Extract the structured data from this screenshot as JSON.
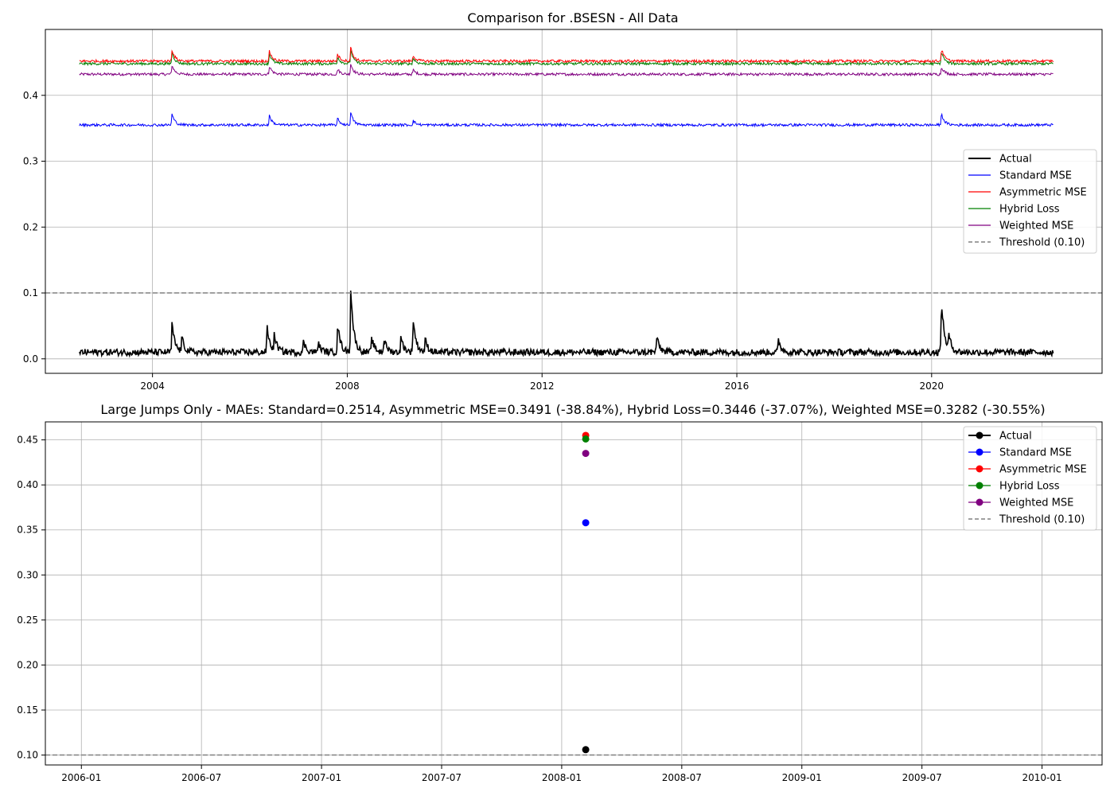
{
  "chart_data": [
    {
      "type": "line",
      "title": "Comparison for .BSESN - All Data",
      "xlabel": "",
      "ylabel": "",
      "x_range": [
        "2002-07-01",
        "2022-06-30"
      ],
      "xlim": [
        2001.8,
        2023.5
      ],
      "ylim": [
        -0.022,
        0.5
      ],
      "x_ticks": [
        "2004",
        "2008",
        "2012",
        "2016",
        "2020"
      ],
      "y_ticks": [
        "0.0",
        "0.1",
        "0.2",
        "0.3",
        "0.4"
      ],
      "grid": true,
      "legend_position": "right",
      "threshold": {
        "name": "Threshold (0.10)",
        "value": 0.1,
        "color": "#808080",
        "style": "dashed"
      },
      "series": [
        {
          "name": "Actual",
          "color": "#000000",
          "baseline": 0.01,
          "noise": 0.005,
          "spikes": [
            {
              "x": 2004.4,
              "y": 0.054
            },
            {
              "x": 2004.6,
              "y": 0.032
            },
            {
              "x": 2006.35,
              "y": 0.051
            },
            {
              "x": 2006.5,
              "y": 0.035
            },
            {
              "x": 2007.1,
              "y": 0.027
            },
            {
              "x": 2007.4,
              "y": 0.025
            },
            {
              "x": 2007.8,
              "y": 0.055
            },
            {
              "x": 2008.07,
              "y": 0.107
            },
            {
              "x": 2008.5,
              "y": 0.032
            },
            {
              "x": 2008.75,
              "y": 0.032
            },
            {
              "x": 2009.1,
              "y": 0.034
            },
            {
              "x": 2009.35,
              "y": 0.063
            },
            {
              "x": 2009.6,
              "y": 0.03
            },
            {
              "x": 2014.35,
              "y": 0.035
            },
            {
              "x": 2016.85,
              "y": 0.03
            },
            {
              "x": 2020.2,
              "y": 0.093
            },
            {
              "x": 2020.35,
              "y": 0.033
            }
          ]
        },
        {
          "name": "Standard MSE",
          "color": "#0000ff",
          "baseline": 0.355,
          "noise": 0.002,
          "spikes": [
            {
              "x": 2004.4,
              "y": 0.372
            },
            {
              "x": 2006.4,
              "y": 0.37
            },
            {
              "x": 2007.8,
              "y": 0.365
            },
            {
              "x": 2008.07,
              "y": 0.374
            },
            {
              "x": 2009.35,
              "y": 0.362
            },
            {
              "x": 2020.2,
              "y": 0.373
            }
          ]
        },
        {
          "name": "Asymmetric MSE",
          "color": "#ff0000",
          "baseline": 0.452,
          "noise": 0.002,
          "spikes": [
            {
              "x": 2004.4,
              "y": 0.47
            },
            {
              "x": 2006.4,
              "y": 0.468
            },
            {
              "x": 2007.8,
              "y": 0.463
            },
            {
              "x": 2008.07,
              "y": 0.473
            },
            {
              "x": 2009.35,
              "y": 0.461
            },
            {
              "x": 2020.2,
              "y": 0.472
            }
          ]
        },
        {
          "name": "Hybrid Loss",
          "color": "#008000",
          "baseline": 0.448,
          "noise": 0.002,
          "spikes": [
            {
              "x": 2004.4,
              "y": 0.466
            },
            {
              "x": 2006.4,
              "y": 0.464
            },
            {
              "x": 2007.8,
              "y": 0.459
            },
            {
              "x": 2008.07,
              "y": 0.469
            },
            {
              "x": 2009.35,
              "y": 0.457
            },
            {
              "x": 2020.2,
              "y": 0.468
            }
          ]
        },
        {
          "name": "Weighted MSE",
          "color": "#800080",
          "baseline": 0.432,
          "noise": 0.002,
          "spikes": [
            {
              "x": 2004.4,
              "y": 0.446
            },
            {
              "x": 2006.4,
              "y": 0.445
            },
            {
              "x": 2007.8,
              "y": 0.44
            },
            {
              "x": 2008.07,
              "y": 0.448
            },
            {
              "x": 2009.35,
              "y": 0.439
            },
            {
              "x": 2020.2,
              "y": 0.444
            }
          ]
        }
      ]
    },
    {
      "type": "scatter",
      "title": "Large Jumps Only - MAEs: Standard=0.2514, Asymmetric MSE=0.3491 (-38.84%), Hybrid Loss=0.3446 (-37.07%), Weighted MSE=0.3282 (-30.55%)",
      "xlabel": "",
      "ylabel": "",
      "xlim": [
        2005.85,
        2010.25
      ],
      "ylim": [
        0.089,
        0.47
      ],
      "x_ticks": [
        "2006-01",
        "2006-07",
        "2007-01",
        "2007-07",
        "2008-01",
        "2008-07",
        "2009-01",
        "2009-07",
        "2010-01"
      ],
      "y_ticks": [
        "0.10",
        "0.15",
        "0.20",
        "0.25",
        "0.30",
        "0.35",
        "0.40",
        "0.45"
      ],
      "grid": true,
      "legend_position": "top-right",
      "threshold": {
        "name": "Threshold (0.10)",
        "value": 0.1,
        "color": "#808080",
        "style": "dashed"
      },
      "x": [
        "2008-01"
      ],
      "series": [
        {
          "name": "Actual",
          "color": "#000000",
          "values": [
            0.106
          ]
        },
        {
          "name": "Standard MSE",
          "color": "#0000ff",
          "values": [
            0.358
          ]
        },
        {
          "name": "Asymmetric MSE",
          "color": "#ff0000",
          "values": [
            0.455
          ]
        },
        {
          "name": "Hybrid Loss",
          "color": "#008000",
          "values": [
            0.451
          ]
        },
        {
          "name": "Weighted MSE",
          "color": "#800080",
          "values": [
            0.435
          ]
        }
      ]
    }
  ]
}
